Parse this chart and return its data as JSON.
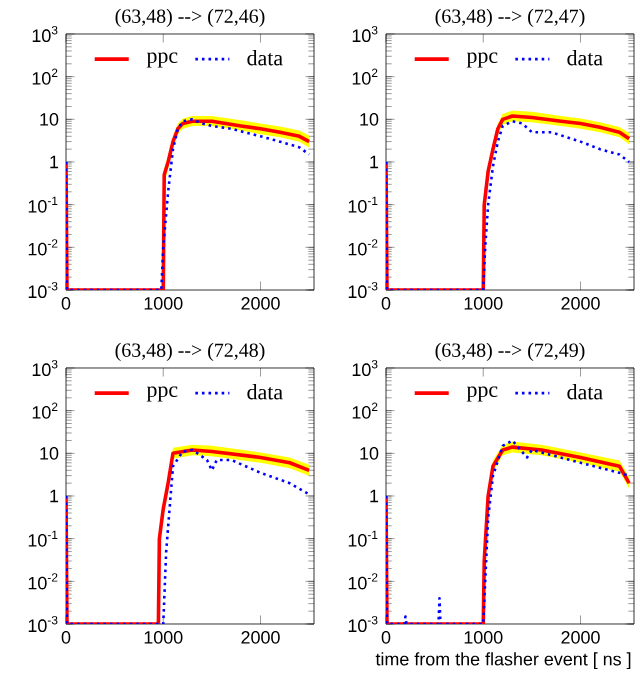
{
  "chart_data": [
    {
      "type": "line",
      "title": "(63,48) --> (72,46)",
      "log": "y",
      "legend": "top",
      "xlim": [
        0,
        2550
      ],
      "ylim": [
        0.001,
        1000
      ],
      "xticks": [
        0,
        1000,
        2000
      ],
      "yticks": [
        {
          "value": 0.001,
          "label": "10$^{-3}$"
        },
        {
          "value": 0.01,
          "label": "10$^{-2}$"
        },
        {
          "value": 0.1,
          "label": "10$^{-1}$"
        },
        1,
        10,
        {
          "value": 100,
          "label": "10$^{2}$"
        },
        {
          "value": 1000,
          "label": "10$^{3}$"
        }
      ],
      "series": [
        {
          "name": "ppc",
          "color": "#ff0000",
          "line_style": "solid",
          "x": [
            0,
            10,
            1000,
            1010,
            1050,
            1100,
            1150,
            1200,
            1300,
            1500,
            1800,
            2000,
            2200,
            2400,
            2500
          ],
          "values": [
            1,
            0.001,
            0.001,
            0.5,
            1,
            3,
            6,
            8,
            9,
            9,
            7,
            6,
            5,
            4,
            3
          ],
          "lower": [
            1,
            0.001,
            0.001,
            0.3,
            0.7,
            2.2,
            4.5,
            6,
            7,
            7,
            5.5,
            4.5,
            3.8,
            3,
            2.2
          ],
          "upper": [
            1,
            0.001,
            0.001,
            0.7,
            1.4,
            4,
            8,
            10.5,
            12,
            12,
            9.5,
            8,
            6.8,
            5.5,
            4.2
          ]
        },
        {
          "name": "data",
          "color": "#0000ff",
          "line_style": "dotted",
          "x": [
            0,
            10,
            980,
            1000,
            1050,
            1100,
            1150,
            1200,
            1300,
            1400,
            1500,
            1700,
            2000,
            2200,
            2400,
            2500
          ],
          "values": [
            1,
            0.001,
            0.001,
            0.01,
            0.2,
            2,
            6,
            9,
            10,
            8,
            7,
            6,
            4,
            3,
            2.2,
            1.5
          ]
        }
      ]
    },
    {
      "type": "line",
      "title": "(63,48) --> (72,47)",
      "log": "y",
      "legend": "top",
      "xlim": [
        0,
        2550
      ],
      "ylim": [
        0.001,
        1000
      ],
      "xticks": [
        0,
        1000,
        2000
      ],
      "yticks": [
        {
          "value": 0.001,
          "label": "10$^{-3}$"
        },
        {
          "value": 0.01,
          "label": "10$^{-2}$"
        },
        {
          "value": 0.1,
          "label": "10$^{-1}$"
        },
        1,
        10,
        {
          "value": 100,
          "label": "10$^{2}$"
        },
        {
          "value": 1000,
          "label": "10$^{3}$"
        }
      ],
      "series": [
        {
          "name": "ppc",
          "color": "#ff0000",
          "line_style": "solid",
          "x": [
            0,
            10,
            1000,
            1010,
            1050,
            1100,
            1150,
            1200,
            1300,
            1500,
            1800,
            2000,
            2200,
            2400,
            2500
          ],
          "values": [
            1,
            0.001,
            0.001,
            0.1,
            0.6,
            2,
            6,
            10,
            12,
            11,
            9,
            8,
            6.5,
            5,
            3.5
          ],
          "lower": [
            1,
            0.001,
            0.001,
            0.07,
            0.4,
            1.5,
            4.5,
            7.5,
            9,
            8.5,
            7,
            6,
            5,
            3.8,
            2.6
          ],
          "upper": [
            1,
            0.001,
            0.001,
            0.14,
            0.8,
            2.8,
            8,
            13.5,
            16,
            15,
            12,
            10.5,
            8.5,
            6.6,
            4.8
          ]
        },
        {
          "name": "data",
          "color": "#0000ff",
          "line_style": "dotted",
          "x": [
            0,
            10,
            1000,
            1020,
            1050,
            1100,
            1150,
            1200,
            1300,
            1400,
            1500,
            1700,
            2000,
            2200,
            2400,
            2500
          ],
          "values": [
            1,
            0.001,
            0.001,
            0.01,
            0.1,
            0.8,
            3,
            7,
            9,
            8,
            5,
            5,
            3,
            2,
            1.5,
            1
          ]
        }
      ]
    },
    {
      "type": "line",
      "title": "(63,48) --> (72,48)",
      "log": "y",
      "legend": "top",
      "xlim": [
        0,
        2550
      ],
      "ylim": [
        0.001,
        1000
      ],
      "xticks": [
        0,
        1000,
        2000
      ],
      "yticks": [
        {
          "value": 0.001,
          "label": "10$^{-3}$"
        },
        {
          "value": 0.01,
          "label": "10$^{-2}$"
        },
        {
          "value": 0.1,
          "label": "10$^{-1}$"
        },
        1,
        10,
        {
          "value": 100,
          "label": "10$^{2}$"
        },
        {
          "value": 1000,
          "label": "10$^{3}$"
        }
      ],
      "series": [
        {
          "name": "ppc",
          "color": "#ff0000",
          "line_style": "solid",
          "x": [
            0,
            10,
            950,
            960,
            1000,
            1050,
            1100,
            1300,
            1500,
            2000,
            2300,
            2500
          ],
          "values": [
            1,
            0.001,
            0.001,
            0.1,
            0.5,
            2,
            10,
            12,
            11,
            8,
            6,
            4
          ],
          "lower": [
            1,
            0.001,
            0.001,
            0.07,
            0.35,
            1.5,
            7.5,
            9,
            8.5,
            6,
            4.5,
            3
          ],
          "upper": [
            1,
            0.001,
            0.001,
            0.14,
            0.7,
            2.7,
            13.5,
            16,
            15,
            10.5,
            8,
            5.4
          ]
        },
        {
          "name": "data",
          "color": "#0000ff",
          "line_style": "dotted",
          "x": [
            0,
            10,
            1000,
            1030,
            1100,
            1200,
            1300,
            1450,
            1500,
            1550,
            1700,
            2000,
            2300,
            2500
          ],
          "values": [
            1,
            0.001,
            0.001,
            0.05,
            5,
            11,
            12,
            7,
            4,
            7,
            7,
            3.5,
            2,
            1.1
          ]
        }
      ]
    },
    {
      "type": "line",
      "title": "(63,48) --> (72,49)",
      "xlabel": "time from the flasher event [ ns ]",
      "log": "y",
      "legend": "top",
      "xlim": [
        0,
        2550
      ],
      "ylim": [
        0.001,
        1000
      ],
      "xticks": [
        0,
        1000,
        2000
      ],
      "yticks": [
        {
          "value": 0.001,
          "label": "10$^{-3}$"
        },
        {
          "value": 0.01,
          "label": "10$^{-2}$"
        },
        {
          "value": 0.1,
          "label": "10$^{-1}$"
        },
        1,
        10,
        {
          "value": 100,
          "label": "10$^{2}$"
        },
        {
          "value": 1000,
          "label": "10$^{3}$"
        }
      ],
      "series": [
        {
          "name": "ppc",
          "color": "#ff0000",
          "line_style": "solid",
          "x": [
            0,
            10,
            1000,
            1010,
            1050,
            1100,
            1200,
            1300,
            1600,
            2000,
            2400,
            2500
          ],
          "values": [
            1,
            0.001,
            0.001,
            0.03,
            1,
            5,
            12,
            14,
            12,
            8,
            5,
            2
          ],
          "lower": [
            1,
            0.001,
            0.001,
            0.02,
            0.7,
            3.7,
            9,
            10.5,
            9,
            6,
            3.7,
            1.5
          ],
          "upper": [
            1,
            0.001,
            0.001,
            0.04,
            1.4,
            6.8,
            16,
            19,
            16,
            10.5,
            6.8,
            2.8
          ]
        },
        {
          "name": "data",
          "color": "#0000ff",
          "line_style": "dotted",
          "x": [
            0,
            10,
            190,
            200,
            210,
            540,
            550,
            560,
            1000,
            1050,
            1100,
            1200,
            1300,
            1450,
            1500,
            2000,
            2400,
            2500
          ],
          "values": [
            1,
            0.001,
            0.001,
            0.0015,
            0.001,
            0.001,
            0.004,
            0.001,
            0.001,
            0.3,
            3,
            15,
            20,
            8,
            12,
            6,
            3.5,
            3
          ]
        }
      ]
    }
  ]
}
